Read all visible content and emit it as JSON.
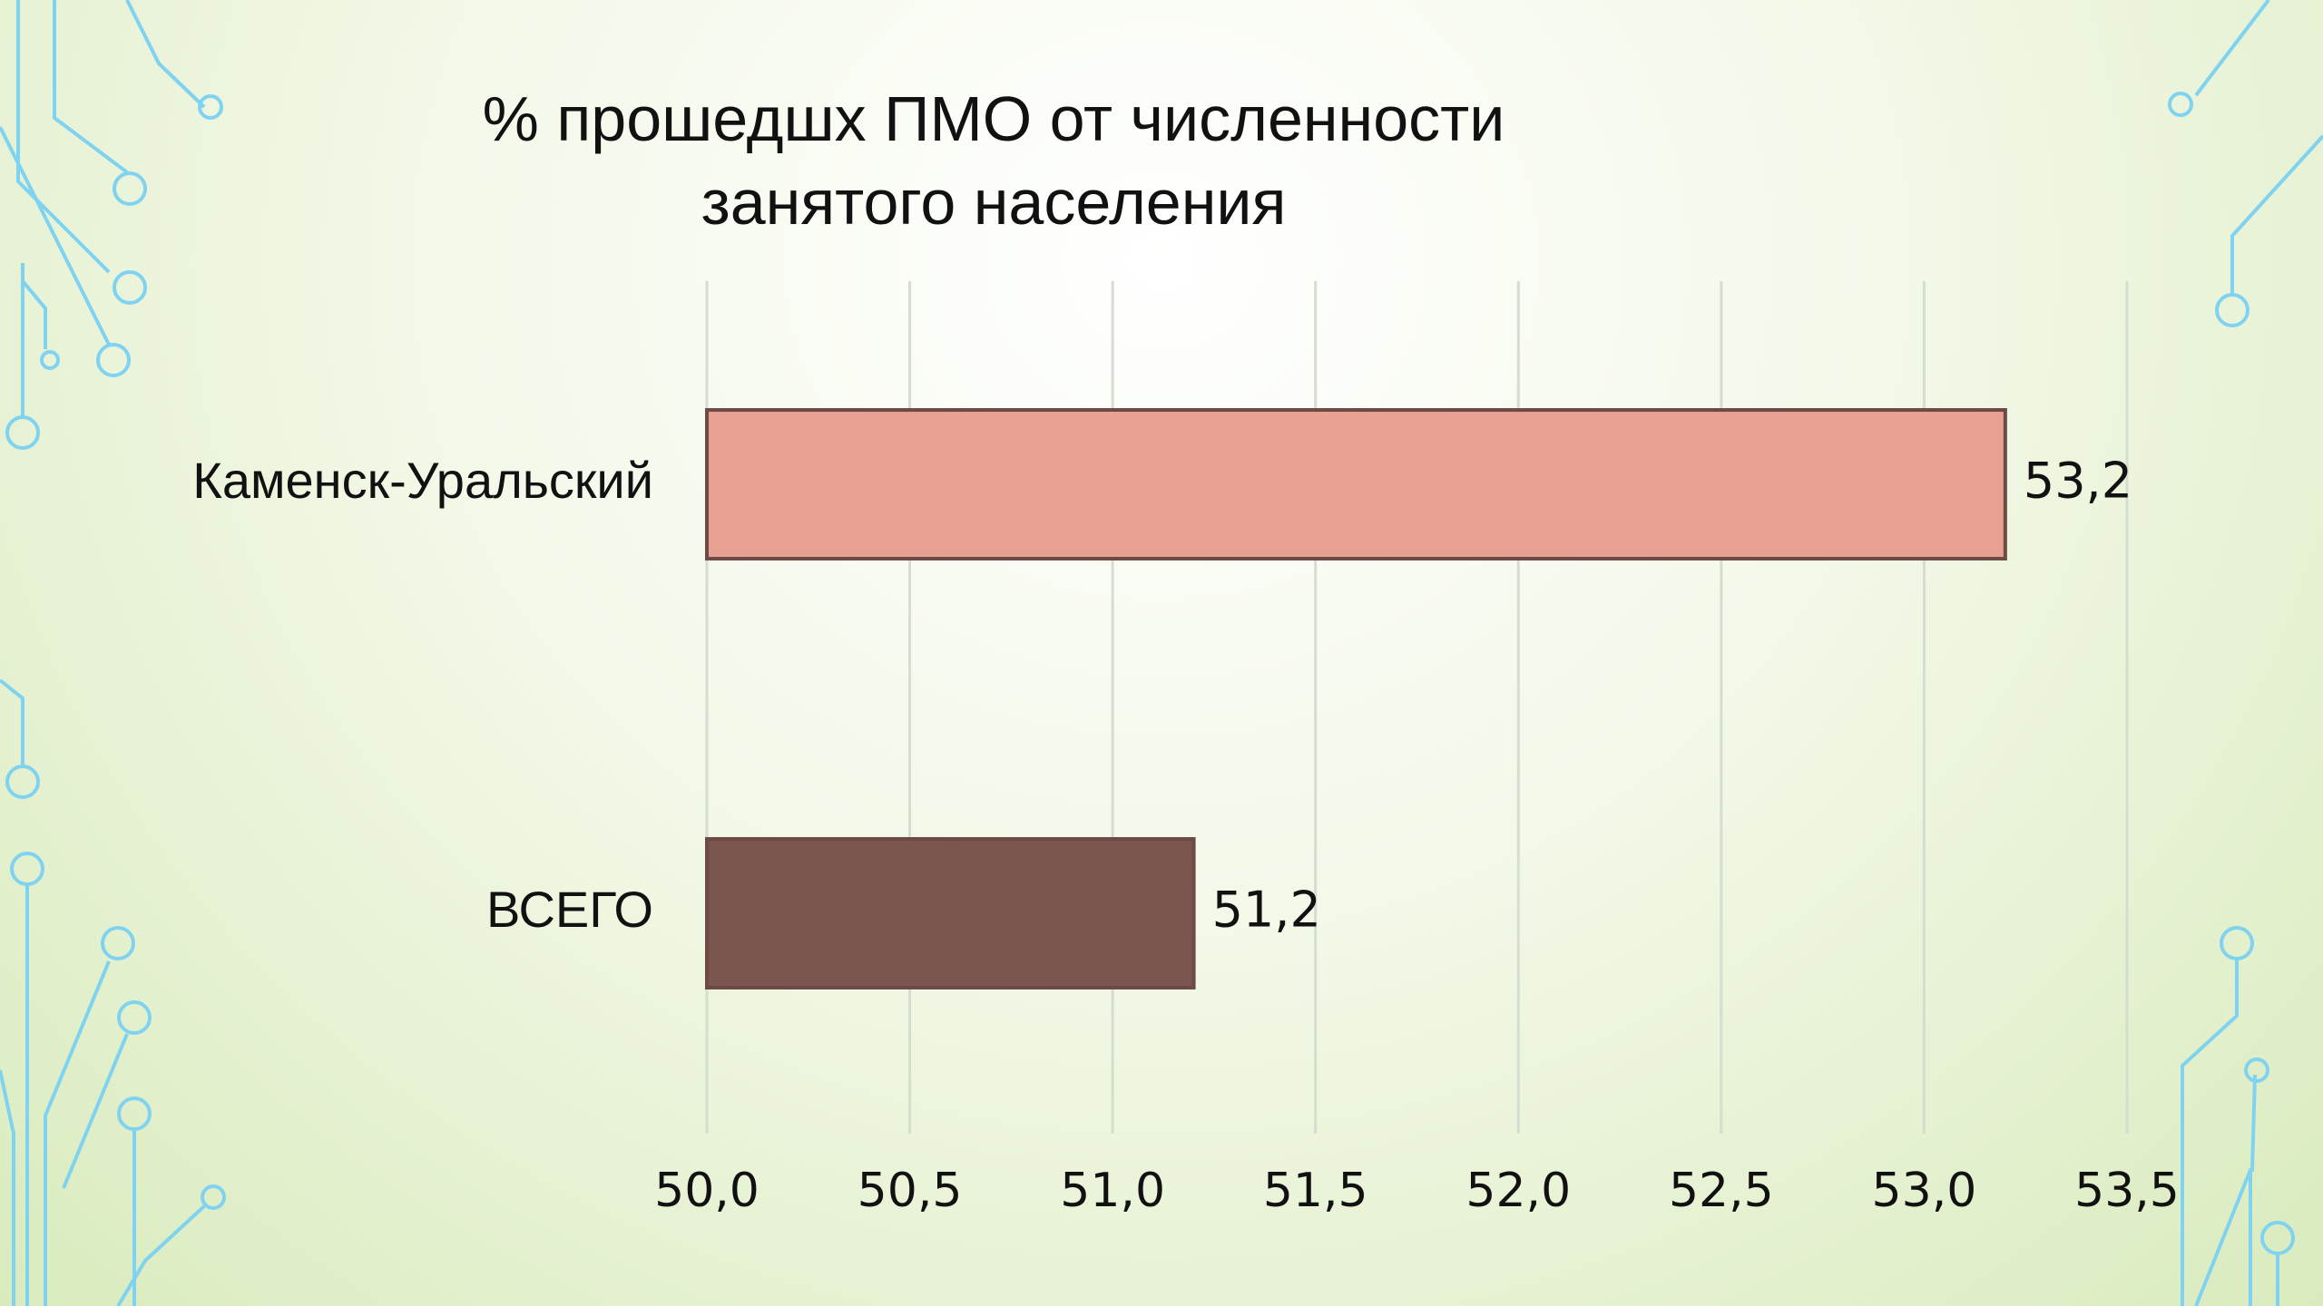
{
  "chart_data": {
    "type": "bar",
    "orientation": "horizontal",
    "title": "% прошедшх ПМО от численности занятого населения",
    "categories": [
      "Каменск-Уральский",
      "ВСЕГО"
    ],
    "values": [
      53.2,
      51.2
    ],
    "value_labels": [
      "53,2",
      "51,2"
    ],
    "colors": [
      "#e8a092",
      "#7b5651"
    ],
    "xlim": [
      50,
      53.5
    ],
    "xticks": [
      {
        "value": 50,
        "label": "50,0"
      },
      {
        "value": 50.5,
        "label": "50,5"
      },
      {
        "value": 51,
        "label": "51,0"
      },
      {
        "value": 51.5,
        "label": "51,5"
      },
      {
        "value": 52,
        "label": "52,0"
      },
      {
        "value": 52.5,
        "label": "52,5"
      },
      {
        "value": 53,
        "label": "53,0"
      },
      {
        "value": 53.5,
        "label": "53,5"
      }
    ],
    "grid": true
  }
}
